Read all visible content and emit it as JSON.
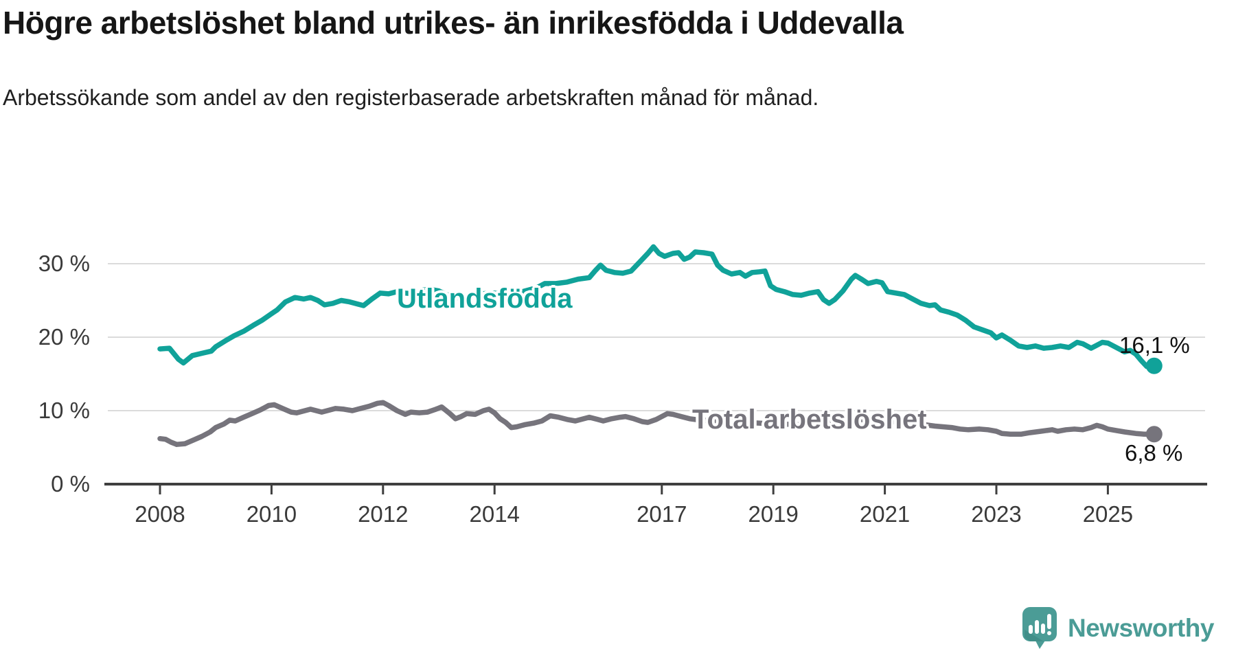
{
  "header": {
    "title": "Högre arbetslöshet bland utrikes- än inrikesfödda i Uddevalla",
    "subtitle": "Arbetssökande som andel av den registerbaserade arbetskraften månad för månad."
  },
  "colors": {
    "series_foreign_born": "#10a299",
    "series_total": "#76747c",
    "gridline": "#dbdbdb",
    "axis_line": "#3f3f3f",
    "axis_text": "#3a3a3a",
    "value_label_text": "#111111",
    "logo_teal": "#4b9c96",
    "logo_fold": "#418f89"
  },
  "logo": {
    "text": "Newsworthy",
    "icon": "chart-speech-bubble-icon"
  },
  "chart_data": {
    "type": "line",
    "title": "Högre arbetslöshet bland utrikes- än inrikesfödda i Uddevalla",
    "subtitle": "Arbetssökande som andel av den registerbaserade arbetskraften månad för månad.",
    "xlabel": "",
    "ylabel": "",
    "ylim": [
      0,
      33
    ],
    "xlim": [
      2007.6,
      2026.3
    ],
    "grid": "horizontal",
    "legend_position": "inline-labels",
    "y_ticks": [
      {
        "label": "30 %",
        "value": 30
      },
      {
        "label": "20 %",
        "value": 20
      },
      {
        "label": "10 %",
        "value": 10
      },
      {
        "label": "0 %",
        "value": 0
      }
    ],
    "x_ticks": [
      {
        "label": "2008",
        "value": 2008
      },
      {
        "label": "2010",
        "value": 2010
      },
      {
        "label": "2012",
        "value": 2012
      },
      {
        "label": "2014",
        "value": 2014
      },
      {
        "label": "2017",
        "value": 2017
      },
      {
        "label": "2019",
        "value": 2019
      },
      {
        "label": "2021",
        "value": 2021
      },
      {
        "label": "2023",
        "value": 2023
      },
      {
        "label": "2025",
        "value": 2025
      }
    ],
    "series": [
      {
        "name": "Utlandsfödda",
        "color": "#10a299",
        "end_value": 16.1,
        "end_label": "16,1 %",
        "points": [
          [
            2008.0,
            18.4
          ],
          [
            2008.17,
            18.5
          ],
          [
            2008.33,
            17.0
          ],
          [
            2008.42,
            16.5
          ],
          [
            2008.58,
            17.5
          ],
          [
            2008.75,
            17.8
          ],
          [
            2008.92,
            18.1
          ],
          [
            2009.0,
            18.7
          ],
          [
            2009.17,
            19.5
          ],
          [
            2009.33,
            20.2
          ],
          [
            2009.5,
            20.8
          ],
          [
            2009.67,
            21.6
          ],
          [
            2009.83,
            22.3
          ],
          [
            2010.0,
            23.2
          ],
          [
            2010.1,
            23.7
          ],
          [
            2010.25,
            24.8
          ],
          [
            2010.42,
            25.4
          ],
          [
            2010.58,
            25.2
          ],
          [
            2010.7,
            25.4
          ],
          [
            2010.83,
            25.0
          ],
          [
            2010.95,
            24.4
          ],
          [
            2011.1,
            24.6
          ],
          [
            2011.25,
            25.0
          ],
          [
            2011.4,
            24.8
          ],
          [
            2011.55,
            24.5
          ],
          [
            2011.65,
            24.3
          ],
          [
            2011.8,
            25.2
          ],
          [
            2011.95,
            26.0
          ],
          [
            2012.1,
            25.9
          ],
          [
            2012.25,
            26.2
          ],
          [
            2012.4,
            26.0
          ],
          [
            2012.55,
            25.9
          ],
          [
            2012.7,
            26.4
          ],
          [
            2012.85,
            26.5
          ],
          [
            2013.0,
            26.3
          ],
          [
            2013.2,
            25.6
          ],
          [
            2013.35,
            25.3
          ],
          [
            2013.55,
            25.7
          ],
          [
            2013.75,
            25.9
          ],
          [
            2014.0,
            26.0
          ],
          [
            2014.25,
            25.8
          ],
          [
            2014.5,
            26.2
          ],
          [
            2014.75,
            26.7
          ],
          [
            2014.9,
            27.3
          ],
          [
            2015.1,
            27.3
          ],
          [
            2015.3,
            27.5
          ],
          [
            2015.5,
            27.9
          ],
          [
            2015.7,
            28.1
          ],
          [
            2015.8,
            29.0
          ],
          [
            2015.9,
            29.8
          ],
          [
            2016.0,
            29.1
          ],
          [
            2016.15,
            28.8
          ],
          [
            2016.3,
            28.7
          ],
          [
            2016.45,
            29.0
          ],
          [
            2016.6,
            30.2
          ],
          [
            2016.75,
            31.4
          ],
          [
            2016.85,
            32.3
          ],
          [
            2016.95,
            31.4
          ],
          [
            2017.05,
            31.0
          ],
          [
            2017.2,
            31.4
          ],
          [
            2017.3,
            31.5
          ],
          [
            2017.4,
            30.6
          ],
          [
            2017.5,
            30.9
          ],
          [
            2017.6,
            31.6
          ],
          [
            2017.75,
            31.5
          ],
          [
            2017.9,
            31.3
          ],
          [
            2018.0,
            29.8
          ],
          [
            2018.1,
            29.1
          ],
          [
            2018.25,
            28.6
          ],
          [
            2018.4,
            28.8
          ],
          [
            2018.5,
            28.3
          ],
          [
            2018.62,
            28.8
          ],
          [
            2018.75,
            28.9
          ],
          [
            2018.85,
            29.0
          ],
          [
            2018.95,
            27.0
          ],
          [
            2019.05,
            26.5
          ],
          [
            2019.2,
            26.2
          ],
          [
            2019.35,
            25.8
          ],
          [
            2019.5,
            25.7
          ],
          [
            2019.65,
            26.0
          ],
          [
            2019.8,
            26.2
          ],
          [
            2019.9,
            25.1
          ],
          [
            2020.0,
            24.6
          ],
          [
            2020.1,
            25.1
          ],
          [
            2020.25,
            26.3
          ],
          [
            2020.4,
            27.9
          ],
          [
            2020.47,
            28.4
          ],
          [
            2020.6,
            27.8
          ],
          [
            2020.7,
            27.3
          ],
          [
            2020.85,
            27.6
          ],
          [
            2020.95,
            27.4
          ],
          [
            2021.05,
            26.2
          ],
          [
            2021.2,
            26.0
          ],
          [
            2021.35,
            25.8
          ],
          [
            2021.5,
            25.2
          ],
          [
            2021.65,
            24.6
          ],
          [
            2021.8,
            24.3
          ],
          [
            2021.9,
            24.4
          ],
          [
            2022.0,
            23.7
          ],
          [
            2022.15,
            23.4
          ],
          [
            2022.3,
            23.0
          ],
          [
            2022.45,
            22.3
          ],
          [
            2022.6,
            21.4
          ],
          [
            2022.75,
            21.0
          ],
          [
            2022.9,
            20.6
          ],
          [
            2023.0,
            19.9
          ],
          [
            2023.1,
            20.3
          ],
          [
            2023.25,
            19.6
          ],
          [
            2023.4,
            18.8
          ],
          [
            2023.55,
            18.6
          ],
          [
            2023.7,
            18.8
          ],
          [
            2023.85,
            18.5
          ],
          [
            2024.0,
            18.6
          ],
          [
            2024.15,
            18.8
          ],
          [
            2024.3,
            18.6
          ],
          [
            2024.45,
            19.3
          ],
          [
            2024.55,
            19.1
          ],
          [
            2024.7,
            18.5
          ],
          [
            2024.8,
            18.9
          ],
          [
            2024.9,
            19.3
          ],
          [
            2025.0,
            19.2
          ],
          [
            2025.1,
            18.8
          ],
          [
            2025.2,
            18.4
          ],
          [
            2025.3,
            18.0
          ],
          [
            2025.4,
            18.2
          ],
          [
            2025.5,
            17.7
          ],
          [
            2025.6,
            16.8
          ],
          [
            2025.7,
            16.0
          ],
          [
            2025.83,
            16.1
          ]
        ]
      },
      {
        "name": "Total arbetslöshet",
        "color": "#76747c",
        "end_value": 6.8,
        "end_label": "6,8 %",
        "points": [
          [
            2008.0,
            6.2
          ],
          [
            2008.1,
            6.1
          ],
          [
            2008.2,
            5.7
          ],
          [
            2008.3,
            5.4
          ],
          [
            2008.45,
            5.5
          ],
          [
            2008.6,
            6.0
          ],
          [
            2008.75,
            6.5
          ],
          [
            2008.9,
            7.1
          ],
          [
            2009.0,
            7.7
          ],
          [
            2009.15,
            8.2
          ],
          [
            2009.25,
            8.7
          ],
          [
            2009.35,
            8.6
          ],
          [
            2009.5,
            9.1
          ],
          [
            2009.65,
            9.6
          ],
          [
            2009.8,
            10.1
          ],
          [
            2009.95,
            10.7
          ],
          [
            2010.05,
            10.8
          ],
          [
            2010.2,
            10.3
          ],
          [
            2010.35,
            9.8
          ],
          [
            2010.45,
            9.7
          ],
          [
            2010.6,
            10.0
          ],
          [
            2010.7,
            10.2
          ],
          [
            2010.8,
            10.0
          ],
          [
            2010.9,
            9.8
          ],
          [
            2011.0,
            10.0
          ],
          [
            2011.15,
            10.3
          ],
          [
            2011.3,
            10.2
          ],
          [
            2011.45,
            10.0
          ],
          [
            2011.6,
            10.3
          ],
          [
            2011.75,
            10.6
          ],
          [
            2011.9,
            11.0
          ],
          [
            2012.0,
            11.1
          ],
          [
            2012.1,
            10.7
          ],
          [
            2012.25,
            10.0
          ],
          [
            2012.4,
            9.5
          ],
          [
            2012.5,
            9.8
          ],
          [
            2012.65,
            9.7
          ],
          [
            2012.8,
            9.8
          ],
          [
            2012.95,
            10.2
          ],
          [
            2013.05,
            10.5
          ],
          [
            2013.2,
            9.6
          ],
          [
            2013.3,
            8.9
          ],
          [
            2013.4,
            9.2
          ],
          [
            2013.5,
            9.6
          ],
          [
            2013.65,
            9.5
          ],
          [
            2013.8,
            10.0
          ],
          [
            2013.9,
            10.2
          ],
          [
            2014.0,
            9.7
          ],
          [
            2014.1,
            8.9
          ],
          [
            2014.2,
            8.4
          ],
          [
            2014.3,
            7.7
          ],
          [
            2014.4,
            7.8
          ],
          [
            2014.55,
            8.1
          ],
          [
            2014.7,
            8.3
          ],
          [
            2014.85,
            8.6
          ],
          [
            2015.0,
            9.3
          ],
          [
            2015.15,
            9.1
          ],
          [
            2015.3,
            8.8
          ],
          [
            2015.45,
            8.6
          ],
          [
            2015.6,
            8.9
          ],
          [
            2015.7,
            9.1
          ],
          [
            2015.85,
            8.8
          ],
          [
            2015.95,
            8.6
          ],
          [
            2016.1,
            8.9
          ],
          [
            2016.25,
            9.1
          ],
          [
            2016.35,
            9.2
          ],
          [
            2016.5,
            8.9
          ],
          [
            2016.65,
            8.5
          ],
          [
            2016.75,
            8.4
          ],
          [
            2016.9,
            8.8
          ],
          [
            2017.0,
            9.2
          ],
          [
            2017.1,
            9.6
          ],
          [
            2017.2,
            9.5
          ],
          [
            2017.35,
            9.2
          ],
          [
            2017.5,
            8.9
          ],
          [
            2017.7,
            8.7
          ],
          [
            2018.0,
            8.6
          ],
          [
            2018.5,
            8.4
          ],
          [
            2019.0,
            8.2
          ],
          [
            2019.5,
            8.1
          ],
          [
            2020.0,
            8.4
          ],
          [
            2020.5,
            8.8
          ],
          [
            2021.0,
            8.6
          ],
          [
            2021.5,
            8.3
          ],
          [
            2021.9,
            7.9
          ],
          [
            2022.2,
            7.7
          ],
          [
            2022.35,
            7.5
          ],
          [
            2022.5,
            7.4
          ],
          [
            2022.7,
            7.5
          ],
          [
            2022.85,
            7.4
          ],
          [
            2023.0,
            7.2
          ],
          [
            2023.1,
            6.9
          ],
          [
            2023.25,
            6.8
          ],
          [
            2023.45,
            6.8
          ],
          [
            2023.6,
            7.0
          ],
          [
            2023.8,
            7.2
          ],
          [
            2024.0,
            7.4
          ],
          [
            2024.1,
            7.2
          ],
          [
            2024.25,
            7.4
          ],
          [
            2024.4,
            7.5
          ],
          [
            2024.55,
            7.4
          ],
          [
            2024.7,
            7.7
          ],
          [
            2024.8,
            8.0
          ],
          [
            2024.9,
            7.8
          ],
          [
            2025.0,
            7.5
          ],
          [
            2025.15,
            7.3
          ],
          [
            2025.3,
            7.1
          ],
          [
            2025.5,
            6.9
          ],
          [
            2025.65,
            6.8
          ],
          [
            2025.83,
            6.8
          ]
        ]
      }
    ]
  }
}
